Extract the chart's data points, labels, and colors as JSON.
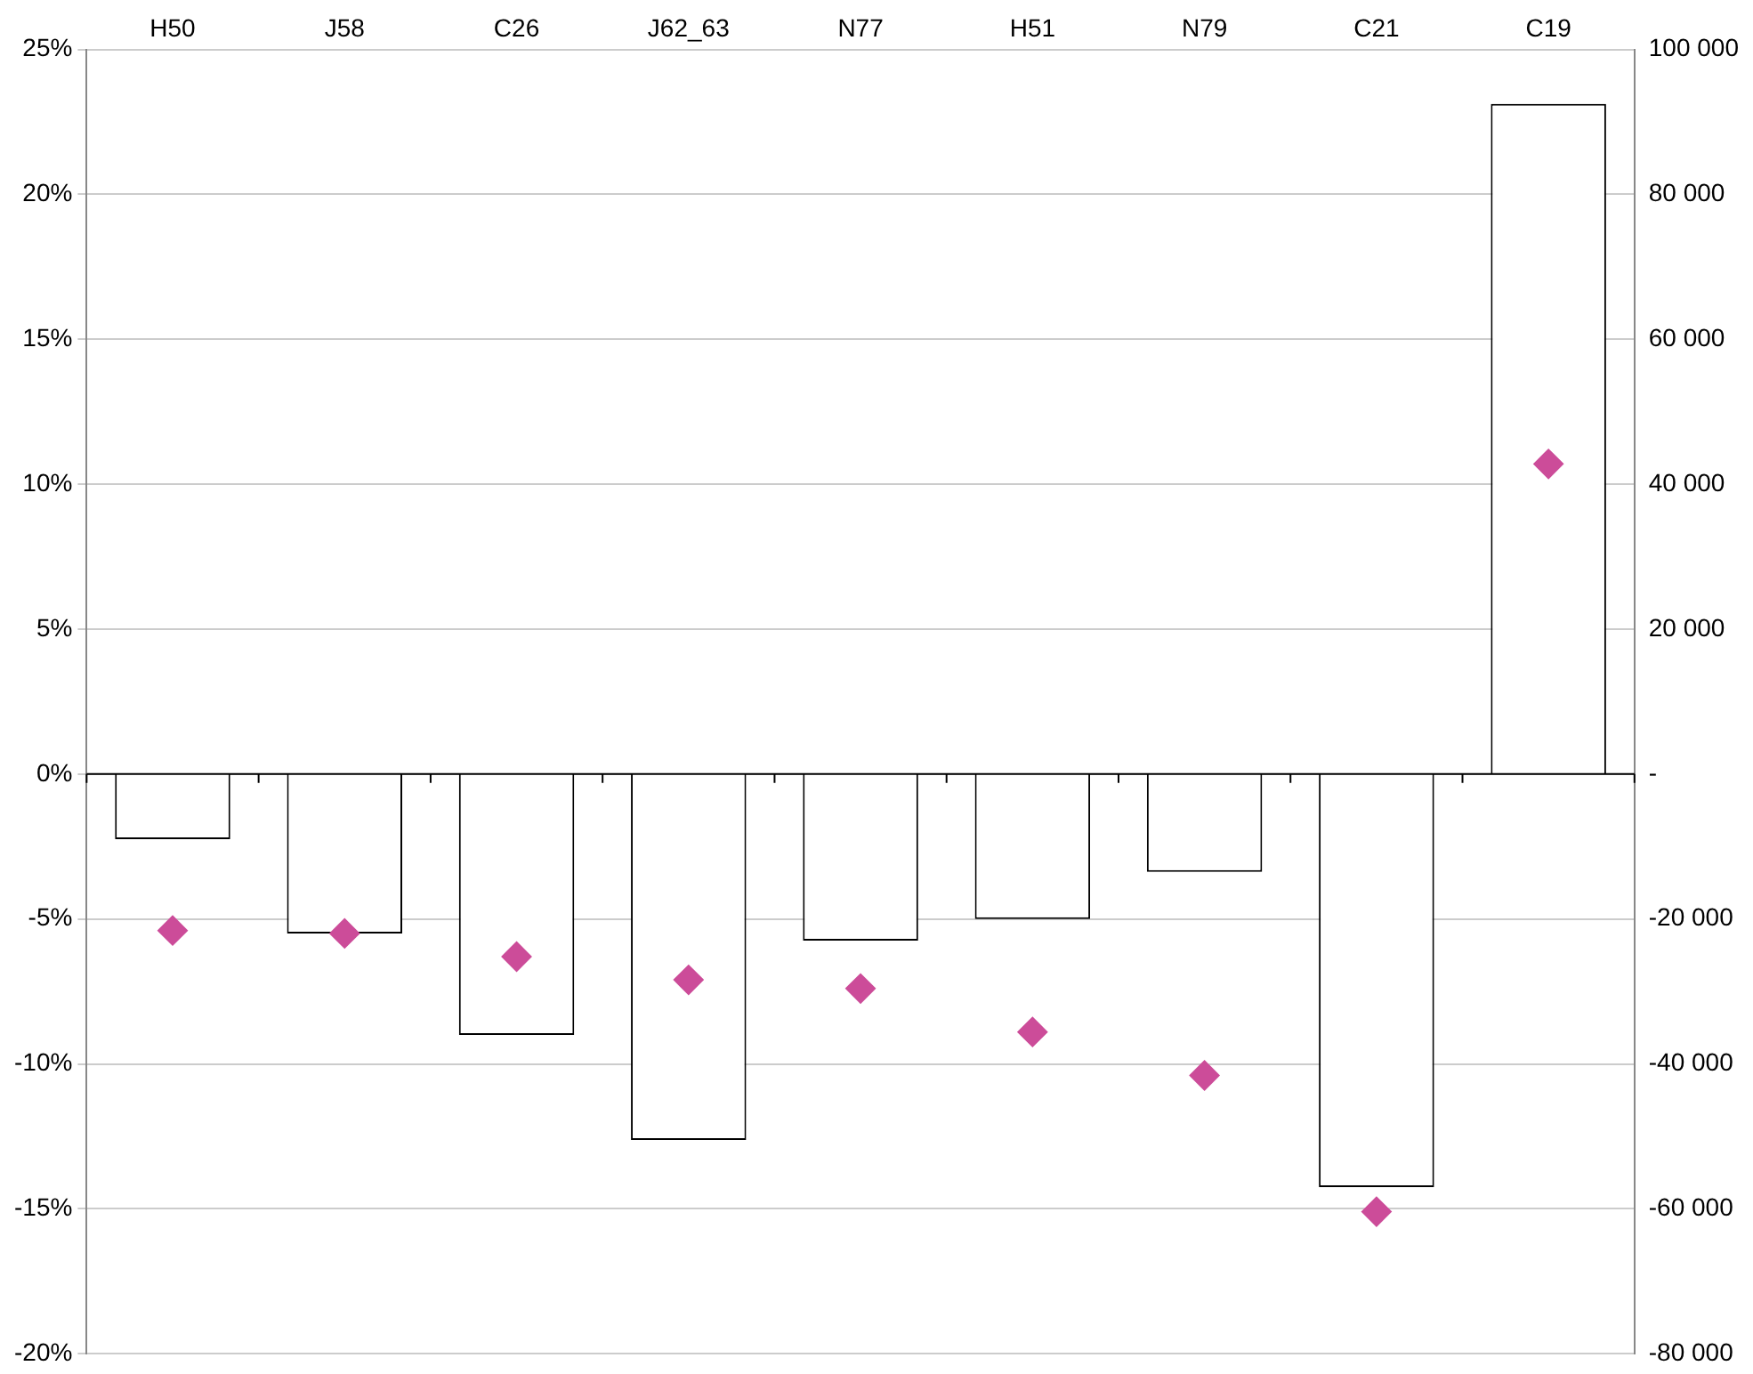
{
  "chart_data": {
    "type": "bar",
    "categories": [
      "H50",
      "J58",
      "C26",
      "J62_63",
      "N77",
      "H51",
      "N79",
      "C21",
      "C19"
    ],
    "series": [
      {
        "axis": "y2",
        "color": "#ffffff",
        "values": [
          -9000,
          -22000,
          -36000,
          -50500,
          -23000,
          -20000,
          -13500,
          -57000,
          92500
        ]
      },
      {
        "type": "scatter",
        "axis": "y",
        "color": "#cc4c99",
        "marker": "diamond",
        "values": [
          -5.4,
          -5.5,
          -6.3,
          -7.1,
          -7.4,
          -8.9,
          -10.4,
          -15.1,
          10.7
        ]
      }
    ],
    "ylim": [
      -20,
      25
    ],
    "yticks": [
      {
        "value": -20,
        "label": "-20%"
      },
      {
        "value": -15,
        "label": "-15%"
      },
      {
        "value": -10,
        "label": "-10%"
      },
      {
        "value": -5,
        "label": "-5%"
      },
      {
        "value": 0,
        "label": "0%"
      },
      {
        "value": 5,
        "label": "5%"
      },
      {
        "value": 10,
        "label": "10%"
      },
      {
        "value": 15,
        "label": "15%"
      },
      {
        "value": 20,
        "label": "20%"
      },
      {
        "value": 25,
        "label": "25%"
      }
    ],
    "y2lim": [
      -80000,
      100000
    ],
    "y2ticks": [
      {
        "value": -80000,
        "label": "-80 000"
      },
      {
        "value": -60000,
        "label": "-60 000"
      },
      {
        "value": -40000,
        "label": "-40 000"
      },
      {
        "value": -20000,
        "label": "-20 000"
      },
      {
        "value": 0,
        "label": "-"
      },
      {
        "value": 20000,
        "label": "20 000"
      },
      {
        "value": 40000,
        "label": "40 000"
      },
      {
        "value": 60000,
        "label": "60 000"
      },
      {
        "value": 80000,
        "label": "80 000"
      },
      {
        "value": 100000,
        "label": "100 000"
      }
    ],
    "grid": "y",
    "legend": false
  }
}
